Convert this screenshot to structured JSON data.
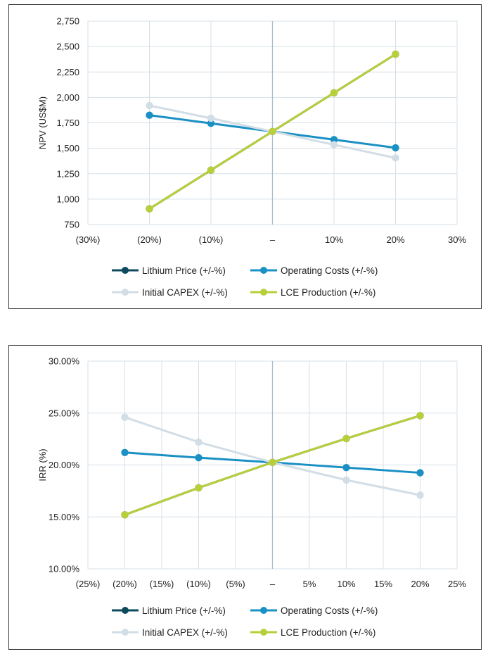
{
  "colors": {
    "lithium_price": "#0d4a5e",
    "operating_costs": "#1a90c4",
    "initial_capex": "#d2dde6",
    "lce_production": "#b8cf3a",
    "grid": "#d7e0e8",
    "zero_line": "#a8bccb"
  },
  "chart_data": [
    {
      "type": "line",
      "id": "npv",
      "title": "",
      "xlabel": "",
      "ylabel": "NPV (US$M)",
      "x_ticks": [
        "(30%)",
        "(20%)",
        "(10%)",
        "–",
        "10%",
        "20%",
        "30%"
      ],
      "x_range": [
        -30,
        30
      ],
      "x_tick_values": [
        -30,
        -20,
        -10,
        0,
        10,
        20,
        30
      ],
      "y_ticks": [
        "750",
        "1,000",
        "1,250",
        "1,500",
        "1,750",
        "2,000",
        "2,250",
        "2,500",
        "2,750"
      ],
      "y_tick_values": [
        750,
        1000,
        1250,
        1500,
        1750,
        2000,
        2250,
        2500,
        2750
      ],
      "ylim": [
        750,
        2750
      ],
      "x": [
        -20,
        -10,
        0,
        10,
        20
      ],
      "series": [
        {
          "name": "Lithium Price (+/-%)",
          "color_key": "lithium_price",
          "values": [
            905,
            1285,
            1665,
            2045,
            2425
          ]
        },
        {
          "name": "Operating Costs (+/-%)",
          "color_key": "operating_costs",
          "values": [
            1825,
            1745,
            1665,
            1585,
            1505
          ]
        },
        {
          "name": "Initial CAPEX (+/-%)",
          "color_key": "initial_capex",
          "values": [
            1920,
            1795,
            1665,
            1535,
            1405
          ]
        },
        {
          "name": "LCE Production (+/-%)",
          "color_key": "lce_production",
          "values": [
            905,
            1285,
            1665,
            2045,
            2425
          ]
        }
      ],
      "legend_position": "bottom"
    },
    {
      "type": "line",
      "id": "irr",
      "title": "",
      "xlabel": "",
      "ylabel": "IRR (%)",
      "x_ticks": [
        "(25%)",
        "(20%)",
        "(15%)",
        "(10%)",
        "(5%)",
        "–",
        "5%",
        "10%",
        "15%",
        "20%",
        "25%"
      ],
      "x_range": [
        -25,
        25
      ],
      "x_tick_values": [
        -25,
        -20,
        -15,
        -10,
        -5,
        0,
        5,
        10,
        15,
        20,
        25
      ],
      "y_ticks": [
        "10.00%",
        "15.00%",
        "20.00%",
        "25.00%",
        "30.00%"
      ],
      "y_tick_values": [
        10,
        15,
        20,
        25,
        30
      ],
      "ylim": [
        10,
        30
      ],
      "x": [
        -20,
        -10,
        0,
        10,
        20
      ],
      "series": [
        {
          "name": "Lithium Price (+/-%)",
          "color_key": "lithium_price",
          "values": [
            15.2,
            17.8,
            20.25,
            22.55,
            24.75
          ]
        },
        {
          "name": "Operating Costs (+/-%)",
          "color_key": "operating_costs",
          "values": [
            21.2,
            20.7,
            20.25,
            19.75,
            19.25
          ]
        },
        {
          "name": "Initial CAPEX (+/-%)",
          "color_key": "initial_capex",
          "values": [
            24.6,
            22.2,
            20.25,
            18.55,
            17.1
          ]
        },
        {
          "name": "LCE Production (+/-%)",
          "color_key": "lce_production",
          "values": [
            15.2,
            17.8,
            20.25,
            22.55,
            24.75
          ]
        }
      ],
      "legend_position": "bottom"
    }
  ]
}
